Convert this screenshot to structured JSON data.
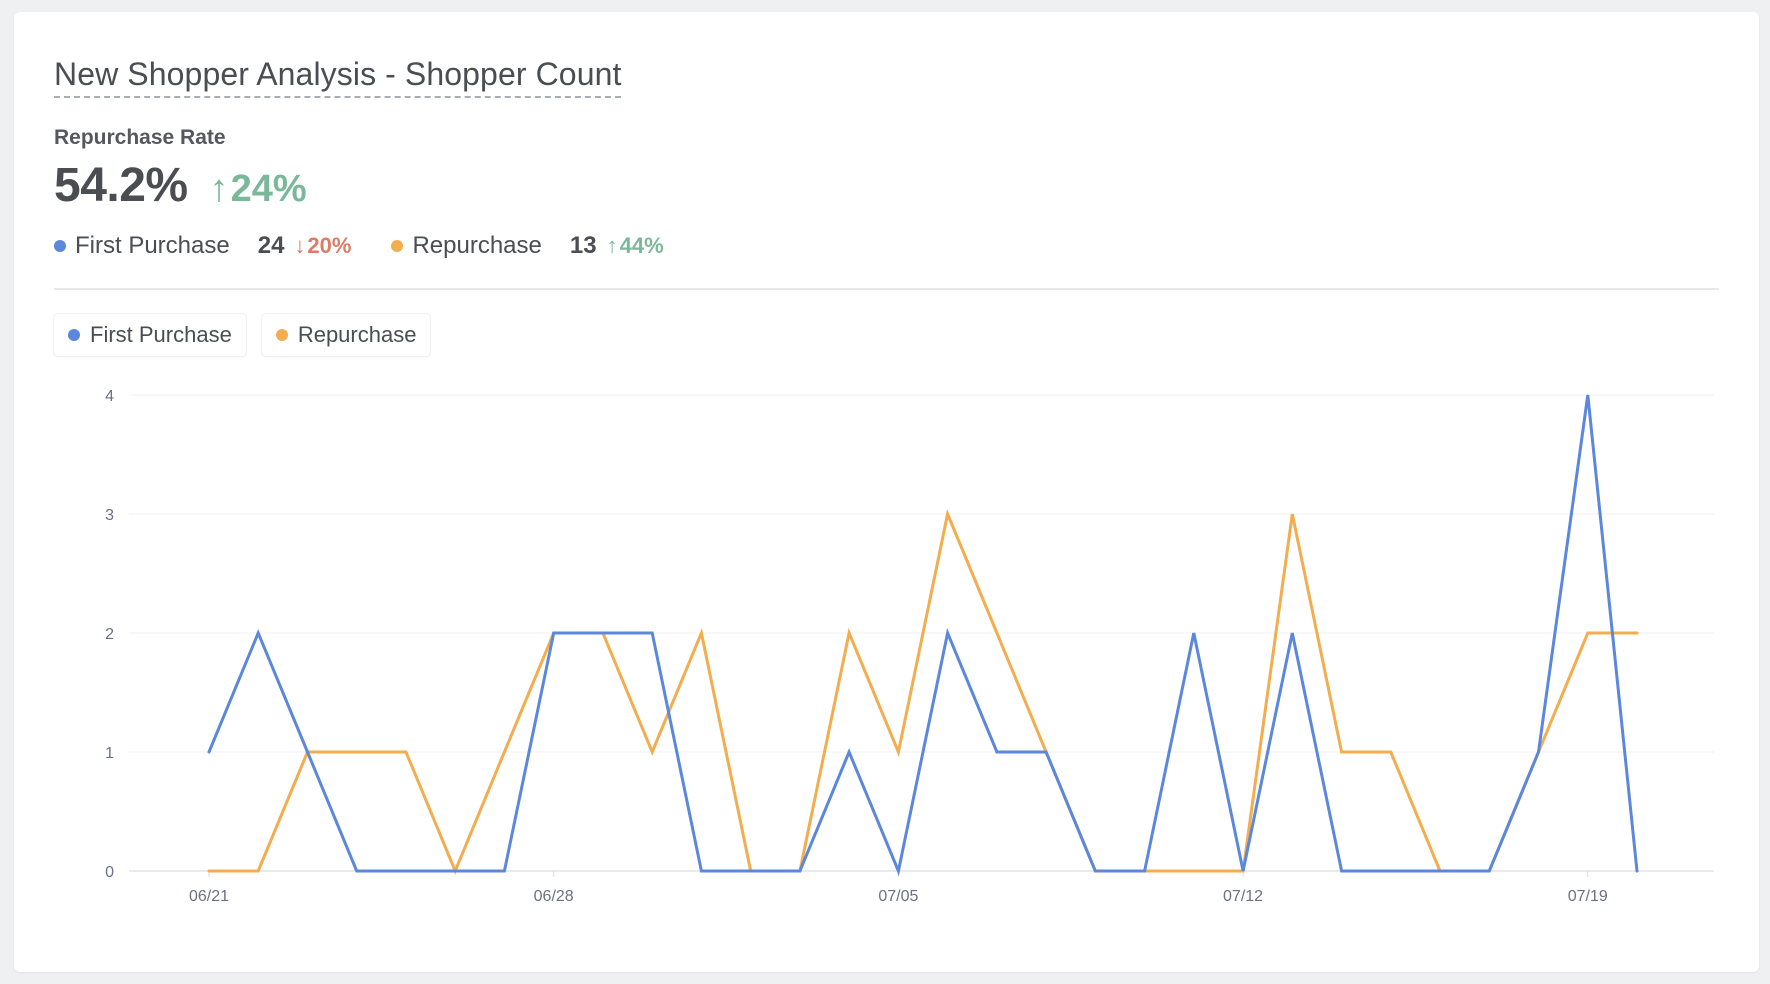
{
  "card": {
    "title": "New Shopper Analysis - Shopper Count",
    "kpi_label": "Repurchase Rate",
    "kpi_value": "54.2%",
    "kpi_change": "24%",
    "kpi_change_direction": "up"
  },
  "metrics": [
    {
      "name": "First Purchase",
      "count": "24",
      "change": "20%",
      "direction": "down",
      "color": "#5b87dc"
    },
    {
      "name": "Repurchase",
      "count": "13",
      "change": "44%",
      "direction": "up",
      "color": "#f3ad4f"
    }
  ],
  "legend": [
    {
      "label": "First Purchase",
      "color": "#5b87dc"
    },
    {
      "label": "Repurchase",
      "color": "#f3ad4f"
    }
  ],
  "colors": {
    "positive": "#7bb89a",
    "negative": "#dc7b66",
    "first_purchase": "#5b87dc",
    "repurchase": "#f3ad4f"
  },
  "chart_data": {
    "type": "line",
    "x": [
      "06/21",
      "06/22",
      "06/23",
      "06/24",
      "06/25",
      "06/26",
      "06/27",
      "06/28",
      "06/29",
      "06/30",
      "07/01",
      "07/02",
      "07/03",
      "07/04",
      "07/05",
      "07/06",
      "07/07",
      "07/08",
      "07/09",
      "07/10",
      "07/11",
      "07/12",
      "07/13",
      "07/14",
      "07/15",
      "07/16",
      "07/17",
      "07/18",
      "07/19",
      "07/20"
    ],
    "x_tick_labels": [
      "06/21",
      "06/28",
      "07/05",
      "07/12",
      "07/19"
    ],
    "series": [
      {
        "name": "First Purchase",
        "color": "#5b87dc",
        "values": [
          1,
          2,
          1,
          0,
          0,
          0,
          0,
          2,
          2,
          2,
          0,
          0,
          0,
          1,
          0,
          2,
          1,
          1,
          0,
          0,
          2,
          0,
          2,
          0,
          0,
          0,
          0,
          1,
          4,
          0
        ]
      },
      {
        "name": "Repurchase",
        "color": "#f3ad4f",
        "values": [
          0,
          0,
          1,
          1,
          1,
          0,
          1,
          2,
          2,
          1,
          2,
          0,
          0,
          2,
          1,
          3,
          2,
          1,
          0,
          0,
          0,
          0,
          3,
          1,
          1,
          0,
          0,
          1,
          2,
          2
        ]
      }
    ],
    "title": "",
    "xlabel": "",
    "ylabel": "",
    "ylim": [
      0,
      4
    ],
    "yticks": [
      0,
      1,
      2,
      3,
      4
    ],
    "grid": true,
    "legend_position": "top-left"
  }
}
